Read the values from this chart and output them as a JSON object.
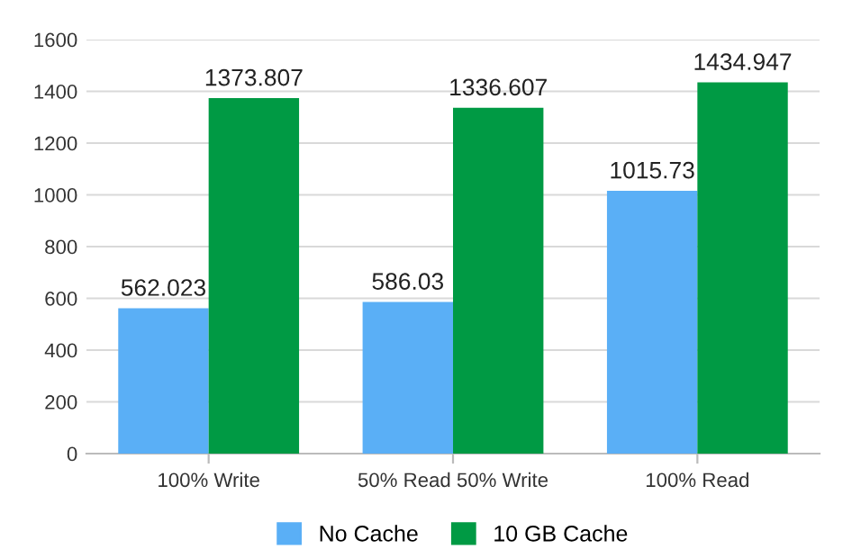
{
  "chart_data": {
    "type": "bar",
    "categories": [
      "100% Write",
      "50% Read 50% Write",
      "100% Read"
    ],
    "series": [
      {
        "name": "No Cache",
        "color": "#5aaff6",
        "values": [
          562.023,
          586.03,
          1015.73
        ]
      },
      {
        "name": "10 GB Cache",
        "color": "#009a44",
        "values": [
          1373.807,
          1336.607,
          1434.947
        ]
      }
    ],
    "ylim": [
      0,
      1600
    ],
    "yticks": [
      0,
      200,
      400,
      600,
      800,
      1000,
      1200,
      1400,
      1600
    ],
    "grid": "y",
    "legend": "bottom",
    "data_labels": true
  }
}
